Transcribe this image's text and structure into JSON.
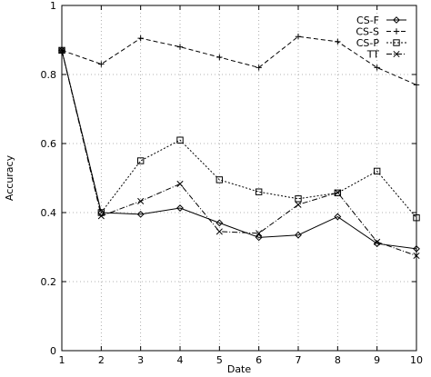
{
  "chart_data": {
    "type": "line",
    "title": "",
    "xlabel": "Date",
    "ylabel": "Accuracy",
    "xlim": [
      1,
      10
    ],
    "ylim": [
      0,
      1
    ],
    "grid": true,
    "legend_position": "top-right",
    "x": [
      1,
      2,
      3,
      4,
      5,
      6,
      7,
      8,
      9,
      10
    ],
    "x_ticks": [
      "1",
      "2",
      "3",
      "4",
      "5",
      "6",
      "7",
      "8",
      "9",
      "10"
    ],
    "y_ticks": [
      {
        "value": 0,
        "label": "0"
      },
      {
        "value": 0.2,
        "label": "0.2"
      },
      {
        "value": 0.4,
        "label": "0.4"
      },
      {
        "value": 0.6,
        "label": "0.6"
      },
      {
        "value": 0.8,
        "label": "0.8"
      },
      {
        "value": 1,
        "label": "1"
      }
    ],
    "series": [
      {
        "name": "CS-F",
        "marker": "diamond",
        "dash": "solid",
        "values": [
          0.87,
          0.4,
          0.395,
          0.413,
          0.37,
          0.328,
          0.335,
          0.388,
          0.31,
          0.295
        ]
      },
      {
        "name": "CS-S",
        "marker": "plus",
        "dash": "dashed",
        "values": [
          0.87,
          0.83,
          0.905,
          0.88,
          0.85,
          0.82,
          0.91,
          0.895,
          0.82,
          0.77
        ]
      },
      {
        "name": "CS-P",
        "marker": "square",
        "dash": "dotted",
        "values": [
          0.87,
          0.4,
          0.55,
          0.61,
          0.495,
          0.46,
          0.44,
          0.457,
          0.52,
          0.385
        ]
      },
      {
        "name": "TT",
        "marker": "cross",
        "dash": "dashdot",
        "values": [
          0.87,
          0.39,
          0.433,
          0.483,
          0.345,
          0.34,
          0.423,
          0.458,
          0.315,
          0.275
        ]
      }
    ]
  }
}
